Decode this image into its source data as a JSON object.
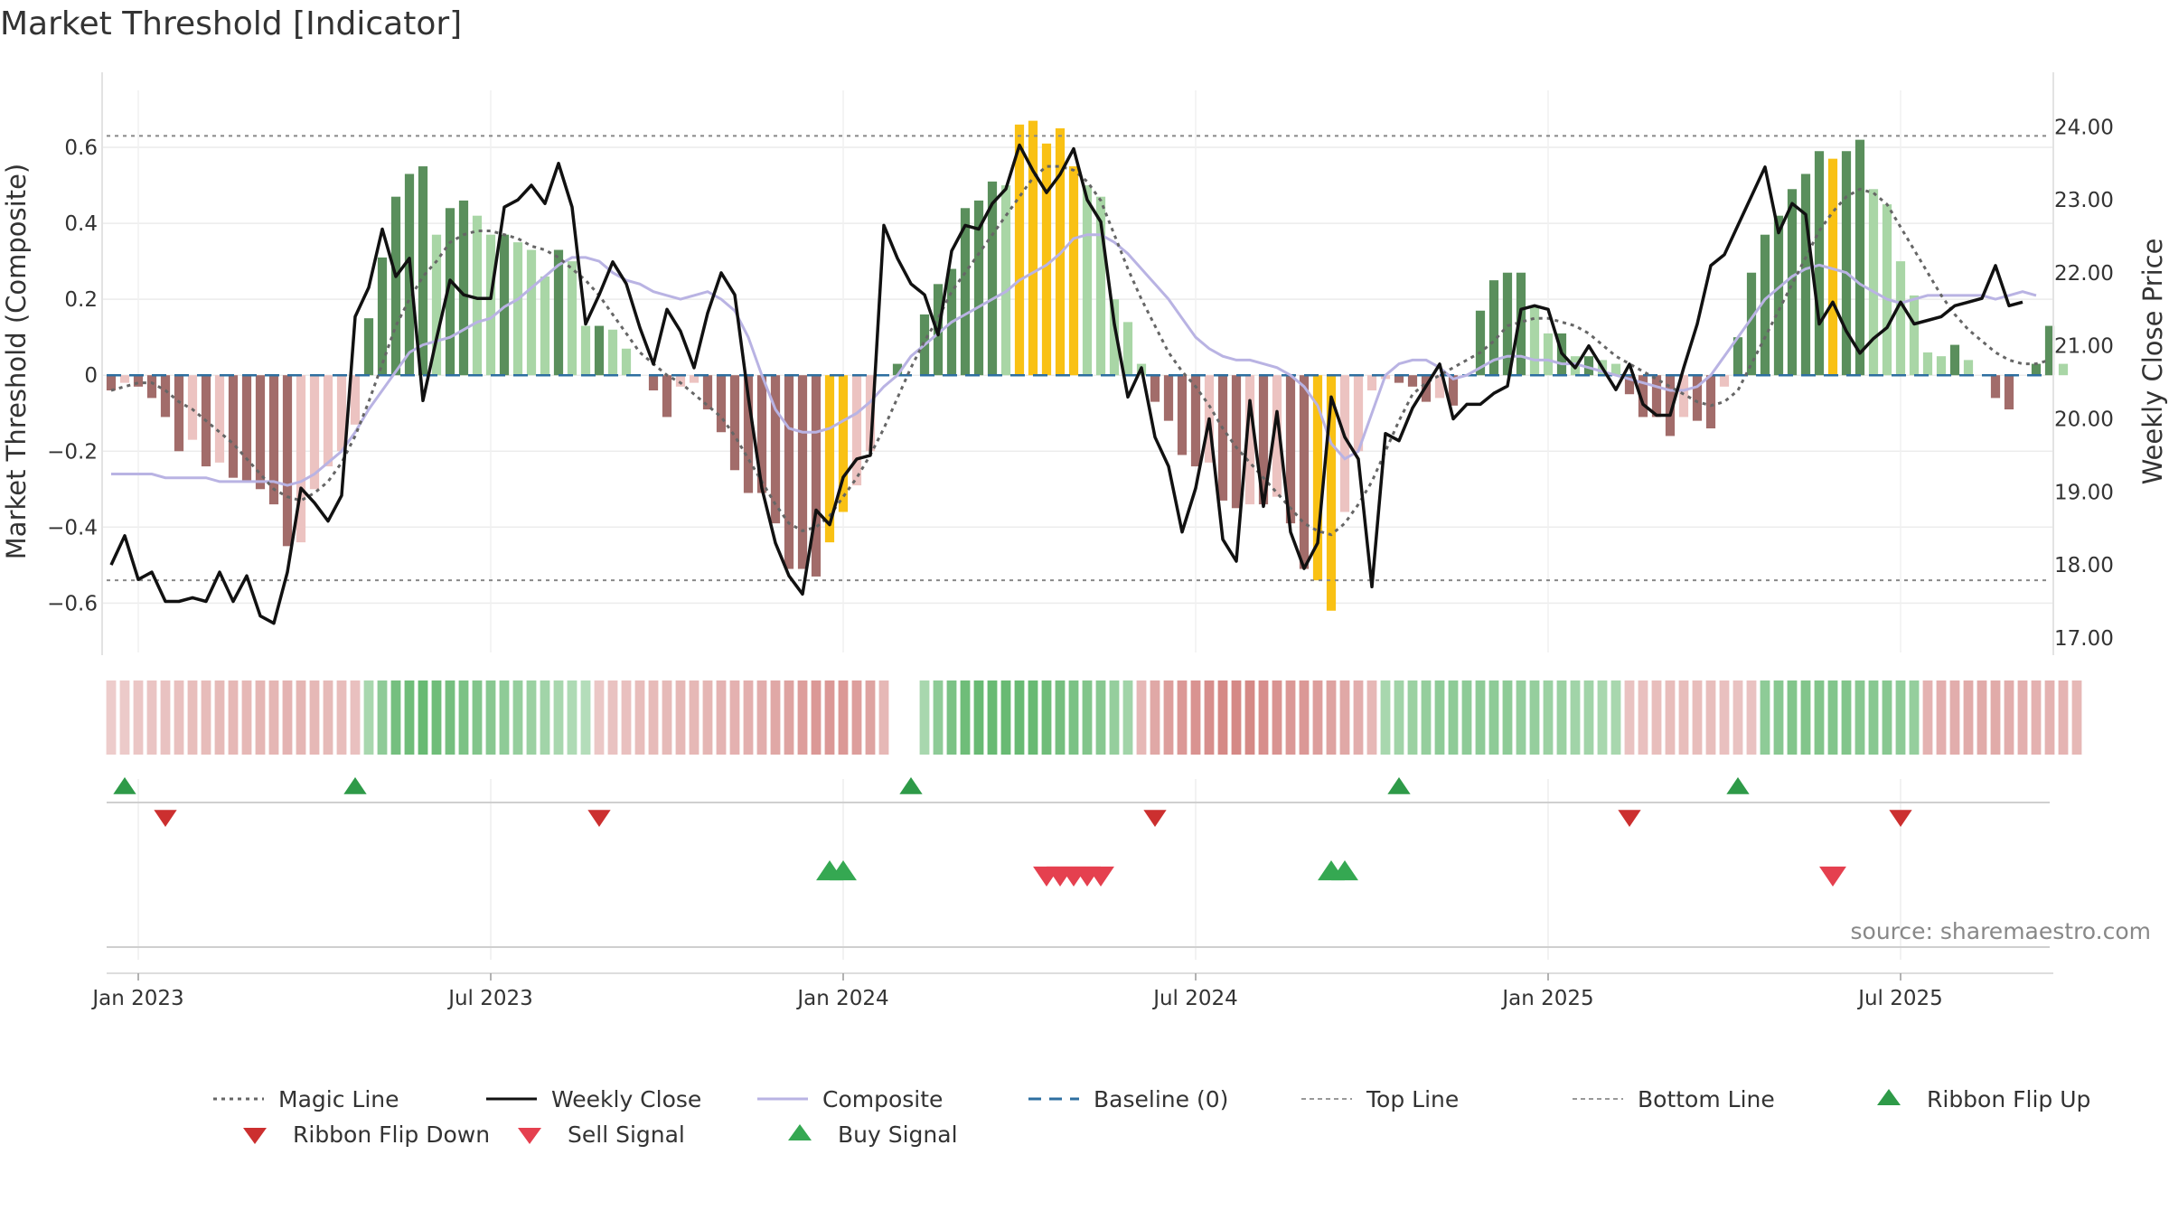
{
  "chart_data": {
    "type": "bar",
    "title": "Market Threshold [Indicator]",
    "ylabel": "Market Threshold (Composite)",
    "ylabel_right": "Weekly Close Price",
    "source": "source: sharemaestro.com",
    "ylim": [
      -0.73,
      0.75
    ],
    "ylim_right": [
      16.8,
      24.5
    ],
    "yticks": [
      -0.6,
      -0.4,
      -0.2,
      0,
      0.2,
      0.4,
      0.6
    ],
    "ytick_labels": [
      "−0.6",
      "−0.4",
      "−0.2",
      "0",
      "0.2",
      "0.4",
      "0.6"
    ],
    "yticks_right": [
      17,
      18,
      19,
      20,
      21,
      22,
      23,
      24
    ],
    "ytick_labels_right": [
      "17.00",
      "18.00",
      "19.00",
      "20.00",
      "21.00",
      "22.00",
      "23.00",
      "24.00"
    ],
    "x_start": "2022-12-19",
    "weeks": 144,
    "xticks": [
      "Jan 2023",
      "Jul 2023",
      "Jan 2024",
      "Jul 2024",
      "Jan 2025",
      "Jul 2025"
    ],
    "xtick_weeks": [
      2,
      28,
      54,
      80,
      106,
      132
    ],
    "top_line": 0.63,
    "bottom_line": -0.54,
    "baseline": 0,
    "composite_bars": [
      -0.04,
      -0.02,
      -0.03,
      -0.06,
      -0.11,
      -0.2,
      -0.17,
      -0.24,
      -0.23,
      -0.27,
      -0.28,
      -0.3,
      -0.34,
      -0.45,
      -0.44,
      -0.3,
      -0.24,
      -0.2,
      -0.13,
      0.15,
      0.31,
      0.47,
      0.53,
      0.55,
      0.37,
      0.44,
      0.46,
      0.42,
      0.37,
      0.37,
      0.35,
      0.33,
      0.26,
      0.33,
      0.3,
      0.13,
      0.13,
      0.12,
      0.07,
      0,
      -0.04,
      -0.11,
      -0.03,
      -0.02,
      -0.09,
      -0.15,
      -0.25,
      -0.31,
      -0.31,
      -0.39,
      -0.51,
      -0.51,
      -0.53,
      -0.44,
      -0.36,
      -0.29,
      -0.2,
      0,
      0.03,
      0,
      0.16,
      0.24,
      0.28,
      0.44,
      0.46,
      0.51,
      0.5,
      0.66,
      0.67,
      0.61,
      0.65,
      0.55,
      0.5,
      0.47,
      0.2,
      0.14,
      0.03,
      -0.07,
      -0.12,
      -0.21,
      -0.24,
      -0.23,
      -0.33,
      -0.35,
      -0.34,
      -0.34,
      -0.32,
      -0.39,
      -0.51,
      -0.54,
      -0.62,
      -0.36,
      -0.2,
      -0.04,
      -0.01,
      -0.02,
      -0.03,
      -0.07,
      -0.06,
      -0.08,
      0,
      0.17,
      0.25,
      0.27,
      0.27,
      0.18,
      0.11,
      0.11,
      0.05,
      0.05,
      0.04,
      0.03,
      -0.05,
      -0.11,
      -0.11,
      -0.16,
      -0.11,
      -0.12,
      -0.14,
      -0.03,
      0.1,
      0.27,
      0.37,
      0.42,
      0.49,
      0.53,
      0.59,
      0.57,
      0.59,
      0.62,
      0.49,
      0.45,
      0.3,
      0.21,
      0.06,
      0.05,
      0.08,
      0.04,
      0,
      -0.06,
      -0.09,
      0,
      0.03,
      0.13,
      0.03
    ],
    "weekly_close": [
      18.0,
      18.4,
      17.8,
      17.9,
      17.5,
      17.5,
      17.55,
      17.5,
      17.9,
      17.5,
      17.85,
      17.3,
      17.2,
      17.9,
      19.05,
      18.85,
      18.6,
      18.95,
      21.4,
      21.8,
      22.6,
      21.95,
      22.2,
      20.25,
      21.1,
      21.9,
      21.7,
      21.65,
      21.65,
      22.9,
      23.0,
      23.2,
      22.95,
      23.5,
      22.9,
      21.3,
      21.7,
      22.15,
      21.85,
      21.25,
      20.75,
      21.5,
      21.2,
      20.7,
      21.45,
      22.0,
      21.7,
      20.3,
      19.05,
      18.3,
      17.85,
      17.6,
      18.75,
      18.55,
      19.2,
      19.45,
      19.5,
      22.65,
      22.2,
      21.85,
      21.7,
      21.15,
      22.3,
      22.65,
      22.6,
      22.95,
      23.15,
      23.75,
      23.4,
      23.1,
      23.35,
      23.7,
      23.0,
      22.7,
      21.3,
      20.3,
      20.7,
      19.75,
      19.35,
      18.45,
      19.05,
      20.0,
      18.35,
      18.05,
      20.25,
      18.8,
      20.1,
      18.45,
      17.95,
      18.3,
      20.3,
      19.75,
      19.45,
      17.7,
      19.8,
      19.7,
      20.15,
      20.45,
      20.75,
      20.0,
      20.2,
      20.2,
      20.35,
      20.45,
      21.5,
      21.55,
      21.5,
      20.9,
      20.7,
      21.0,
      20.7,
      20.4,
      20.75,
      20.2,
      20.05,
      20.05,
      20.7,
      21.3,
      22.1,
      22.25,
      22.65,
      23.05,
      23.45,
      22.55,
      22.95,
      22.8,
      21.3,
      21.6,
      21.2,
      20.9,
      21.1,
      21.25,
      21.6,
      21.3,
      21.35,
      21.4,
      21.55,
      21.6,
      21.65,
      22.1,
      21.55,
      21.6
    ],
    "magic_line": [
      -0.04,
      -0.03,
      -0.02,
      -0.02,
      -0.04,
      -0.07,
      -0.09,
      -0.12,
      -0.15,
      -0.18,
      -0.22,
      -0.26,
      -0.3,
      -0.32,
      -0.33,
      -0.31,
      -0.28,
      -0.23,
      -0.16,
      -0.07,
      0.03,
      0.13,
      0.2,
      0.26,
      0.3,
      0.35,
      0.37,
      0.38,
      0.38,
      0.37,
      0.36,
      0.34,
      0.33,
      0.31,
      0.28,
      0.25,
      0.21,
      0.16,
      0.11,
      0.06,
      0.03,
      0,
      -0.02,
      -0.05,
      -0.08,
      -0.11,
      -0.16,
      -0.22,
      -0.28,
      -0.34,
      -0.39,
      -0.41,
      -0.4,
      -0.37,
      -0.32,
      -0.27,
      -0.21,
      -0.14,
      -0.06,
      0.02,
      0.09,
      0.15,
      0.22,
      0.27,
      0.32,
      0.37,
      0.42,
      0.47,
      0.52,
      0.55,
      0.55,
      0.54,
      0.51,
      0.46,
      0.37,
      0.28,
      0.2,
      0.13,
      0.06,
      0.01,
      -0.03,
      -0.08,
      -0.14,
      -0.19,
      -0.23,
      -0.27,
      -0.31,
      -0.35,
      -0.39,
      -0.41,
      -0.42,
      -0.39,
      -0.34,
      -0.28,
      -0.2,
      -0.12,
      -0.05,
      -0.02,
      0,
      0.02,
      0.04,
      0.06,
      0.09,
      0.13,
      0.14,
      0.15,
      0.15,
      0.14,
      0.13,
      0.11,
      0.08,
      0.05,
      0.03,
      0.01,
      -0.01,
      -0.03,
      -0.05,
      -0.07,
      -0.08,
      -0.07,
      -0.04,
      0.03,
      0.1,
      0.17,
      0.24,
      0.31,
      0.38,
      0.43,
      0.47,
      0.49,
      0.48,
      0.45,
      0.39,
      0.33,
      0.27,
      0.21,
      0.16,
      0.12,
      0.09,
      0.06,
      0.04,
      0.03,
      0.03,
      0.04
    ],
    "composite_line": [
      -0.26,
      -0.26,
      -0.26,
      -0.26,
      -0.27,
      -0.27,
      -0.27,
      -0.27,
      -0.28,
      -0.28,
      -0.28,
      -0.28,
      -0.28,
      -0.29,
      -0.28,
      -0.26,
      -0.23,
      -0.2,
      -0.15,
      -0.09,
      -0.04,
      0.01,
      0.06,
      0.08,
      0.09,
      0.1,
      0.12,
      0.14,
      0.15,
      0.18,
      0.2,
      0.23,
      0.26,
      0.29,
      0.31,
      0.31,
      0.3,
      0.27,
      0.25,
      0.24,
      0.22,
      0.21,
      0.2,
      0.21,
      0.22,
      0.2,
      0.17,
      0.1,
      0.0,
      -0.09,
      -0.14,
      -0.15,
      -0.15,
      -0.14,
      -0.12,
      -0.1,
      -0.07,
      -0.03,
      0.0,
      0.05,
      0.08,
      0.11,
      0.14,
      0.16,
      0.18,
      0.2,
      0.22,
      0.25,
      0.27,
      0.29,
      0.32,
      0.36,
      0.37,
      0.37,
      0.35,
      0.32,
      0.28,
      0.24,
      0.2,
      0.15,
      0.1,
      0.07,
      0.05,
      0.04,
      0.04,
      0.03,
      0.02,
      0,
      -0.03,
      -0.08,
      -0.18,
      -0.22,
      -0.2,
      -0.1,
      0,
      0.03,
      0.04,
      0.04,
      0.02,
      -0.01,
      0,
      0.02,
      0.04,
      0.05,
      0.05,
      0.04,
      0.04,
      0.03,
      0.03,
      0.02,
      0.01,
      0,
      -0.01,
      -0.02,
      -0.03,
      -0.04,
      -0.04,
      -0.03,
      0,
      0.05,
      0.1,
      0.15,
      0.2,
      0.23,
      0.26,
      0.28,
      0.29,
      0.28,
      0.27,
      0.24,
      0.22,
      0.2,
      0.19,
      0.2,
      0.21,
      0.21,
      0.21,
      0.21,
      0.21,
      0.2,
      0.21,
      0.22,
      0.21
    ],
    "highlight_weeks": [
      53,
      54,
      67,
      68,
      69,
      70,
      71,
      89,
      90,
      127
    ],
    "ribbon": [
      -0.1,
      -0.12,
      -0.16,
      -0.18,
      -0.2,
      -0.22,
      -0.24,
      -0.26,
      -0.28,
      -0.3,
      -0.3,
      -0.32,
      -0.32,
      -0.34,
      -0.32,
      -0.3,
      -0.28,
      -0.25,
      -0.22,
      0.3,
      0.5,
      0.7,
      0.75,
      0.8,
      0.75,
      0.7,
      0.65,
      0.6,
      0.55,
      0.5,
      0.45,
      0.4,
      0.35,
      0.3,
      0.25,
      0.2,
      -0.15,
      -0.2,
      -0.22,
      -0.25,
      -0.27,
      -0.28,
      -0.3,
      -0.3,
      -0.32,
      -0.34,
      -0.36,
      -0.38,
      -0.4,
      -0.45,
      -0.5,
      -0.55,
      -0.6,
      -0.6,
      -0.6,
      -0.55,
      -0.5,
      -0.3,
      0,
      0,
      0.3,
      0.5,
      0.65,
      0.75,
      0.8,
      0.8,
      0.8,
      0.8,
      0.8,
      0.75,
      0.7,
      0.65,
      0.6,
      0.55,
      0.45,
      0.35,
      -0.3,
      -0.45,
      -0.55,
      -0.6,
      -0.65,
      -0.7,
      -0.75,
      -0.75,
      -0.75,
      -0.7,
      -0.65,
      -0.6,
      -0.6,
      -0.55,
      -0.5,
      -0.45,
      -0.4,
      -0.3,
      0.3,
      0.35,
      0.4,
      0.45,
      0.5,
      0.5,
      0.5,
      0.5,
      0.5,
      0.5,
      0.45,
      0.45,
      0.4,
      0.4,
      0.35,
      0.35,
      0.3,
      0.3,
      -0.2,
      -0.22,
      -0.24,
      -0.25,
      -0.25,
      -0.25,
      -0.24,
      -0.22,
      -0.2,
      -0.2,
      0.5,
      0.55,
      0.6,
      0.6,
      0.6,
      0.6,
      0.6,
      0.55,
      0.55,
      0.55,
      0.5,
      0.45,
      -0.35,
      -0.38,
      -0.4,
      -0.42,
      -0.42,
      -0.42,
      -0.4,
      -0.38,
      -0.36,
      -0.35,
      -0.33,
      -0.3
    ],
    "ribbon_flip_up_weeks": [
      1,
      18,
      59,
      95,
      120
    ],
    "ribbon_flip_down_weeks": [
      4,
      36,
      77,
      112,
      132
    ],
    "buy_signal_weeks": [
      53,
      54,
      90,
      91
    ],
    "sell_signal_weeks": [
      69,
      70,
      71,
      72,
      73,
      127
    ],
    "legend": [
      {
        "label": "Magic Line",
        "kind": "dotted",
        "color": "#666666"
      },
      {
        "label": "Weekly Close",
        "kind": "solid",
        "color": "#111111"
      },
      {
        "label": "Composite",
        "kind": "solid",
        "color": "#b9b3e3"
      },
      {
        "label": "Baseline (0)",
        "kind": "dashed",
        "color": "#2e6fa0"
      },
      {
        "label": "Top Line",
        "kind": "finedash",
        "color": "#999999"
      },
      {
        "label": "Bottom Line",
        "kind": "finedash",
        "color": "#999999"
      },
      {
        "label": "Ribbon Flip Up",
        "kind": "tri-up",
        "color": "#2e9a48"
      },
      {
        "label": "Ribbon Flip Down",
        "kind": "tri-down",
        "color": "#cc2f2f"
      },
      {
        "label": "Sell Signal",
        "kind": "tri-down",
        "color": "#e5404f"
      },
      {
        "label": "Buy Signal",
        "kind": "tri-up",
        "color": "#35a852"
      }
    ],
    "colors": {
      "pos_strong": "#5a8f5c",
      "pos_weak": "#a9d6a6",
      "neg_strong": "#a26c6a",
      "neg_weak": "#ecc3c1",
      "highlight": "#f9c114",
      "ribbon_green": "#4fae5c",
      "ribbon_red": "#cc6f6c"
    }
  }
}
